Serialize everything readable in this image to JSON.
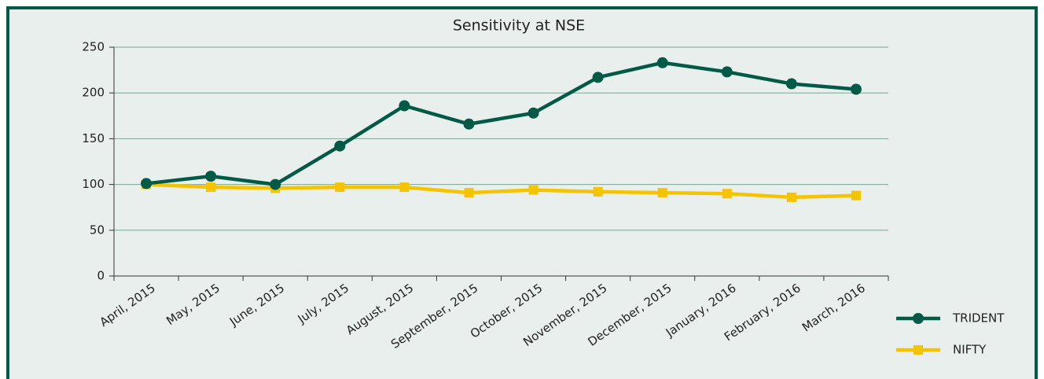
{
  "chart_data": {
    "type": "line",
    "title": "Sensitivity at NSE",
    "categories": [
      "April, 2015",
      "May, 2015",
      "June, 2015",
      "July, 2015",
      "August, 2015",
      "September, 2015",
      "October, 2015",
      "November, 2015",
      "December, 2015",
      "January, 2016",
      "February, 2016",
      "March, 2016"
    ],
    "series": [
      {
        "name": "TRIDENT",
        "color": "#005a46",
        "marker": "circle",
        "values": [
          101,
          109,
          100,
          142,
          186,
          166,
          178,
          217,
          233,
          223,
          210,
          204
        ]
      },
      {
        "name": "NIFTY",
        "color": "#f5c400",
        "marker": "square",
        "values": [
          100,
          97,
          96,
          97,
          97,
          91,
          94,
          92,
          91,
          90,
          86,
          88
        ]
      }
    ],
    "ylim": [
      0,
      250
    ],
    "yticks": [
      0,
      50,
      100,
      150,
      200,
      250
    ],
    "grid": true,
    "legend": "bottom-right"
  }
}
